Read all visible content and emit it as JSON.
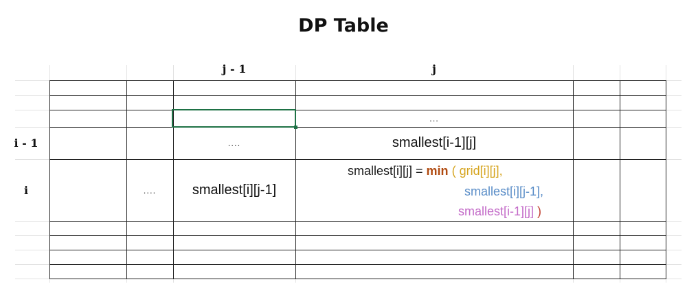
{
  "title": "DP Table",
  "column_headers": {
    "j_minus_1": "j - 1",
    "j": "j"
  },
  "row_headers": {
    "i_minus_1": "i - 1",
    "i": "i"
  },
  "cells": {
    "above_j": "...",
    "i_minus_1_j_minus_1": "....",
    "i_minus_1_j": "smallest[i-1][j]",
    "i_before": "....",
    "i_j_minus_1": "smallest[i][j-1]"
  },
  "formula": {
    "lhs": "smallest[i][j] = ",
    "fn": "min",
    "open_paren": "( ",
    "arg1": "grid[i][j],",
    "arg2": "smallest[i][j-1],",
    "arg3": "smallest[i-1][j]",
    "close_paren": " )"
  },
  "colors": {
    "selection": "#1e7145",
    "min": "#b04a10",
    "arg1": "#d6a520",
    "arg2": "#5b8ec8",
    "arg3": "#c36bc8"
  }
}
